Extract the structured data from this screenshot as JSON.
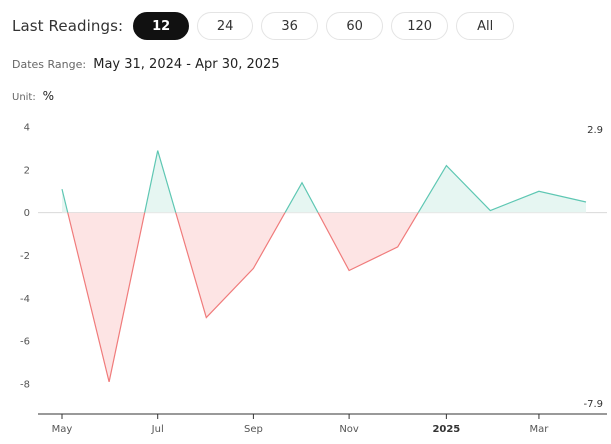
{
  "header": {
    "last_readings_label": "Last Readings:",
    "periods": [
      "12",
      "24",
      "36",
      "60",
      "120",
      "All"
    ],
    "active_period": "12"
  },
  "range": {
    "label": "Dates Range:",
    "value": "May 31, 2024 - Apr 30, 2025"
  },
  "unit": {
    "label": "Unit:",
    "value": "%"
  },
  "colors": {
    "positive_line": "#5ec7b3",
    "negative_line": "#f07b7b",
    "positive_fill": "#e6f6f2",
    "negative_fill": "#fde4e4",
    "zero_line": "#d9d9d9",
    "axis": "#333333",
    "active_pill": "#111111"
  },
  "chart_data": {
    "type": "area",
    "x": [
      "2024-05-31",
      "2024-06-30",
      "2024-07-31",
      "2024-08-31",
      "2024-09-30",
      "2024-10-31",
      "2024-11-30",
      "2024-12-31",
      "2025-01-31",
      "2025-02-28",
      "2025-03-31",
      "2025-04-30"
    ],
    "values": [
      1.1,
      -7.9,
      2.9,
      -4.9,
      -2.6,
      1.4,
      -2.7,
      -1.6,
      2.2,
      0.1,
      1.0,
      0.5
    ],
    "ylim": [
      -9.5,
      4.5
    ],
    "yticks": [
      4,
      2,
      0,
      -2,
      -4,
      -6,
      -8
    ],
    "xtick_labels": [
      {
        "label": "May",
        "date": "2024-05-31",
        "bold": false
      },
      {
        "label": "Jul",
        "date": "2024-07-31",
        "bold": false
      },
      {
        "label": "Sep",
        "date": "2024-09-30",
        "bold": false
      },
      {
        "label": "Nov",
        "date": "2024-11-30",
        "bold": false
      },
      {
        "label": "2025",
        "date": "2025-01-31",
        "bold": true
      },
      {
        "label": "Mar",
        "date": "2025-03-31",
        "bold": false
      }
    ],
    "max_label": "2.9",
    "min_label": "-7.9",
    "grid": false,
    "xlabel": "",
    "ylabel": ""
  }
}
